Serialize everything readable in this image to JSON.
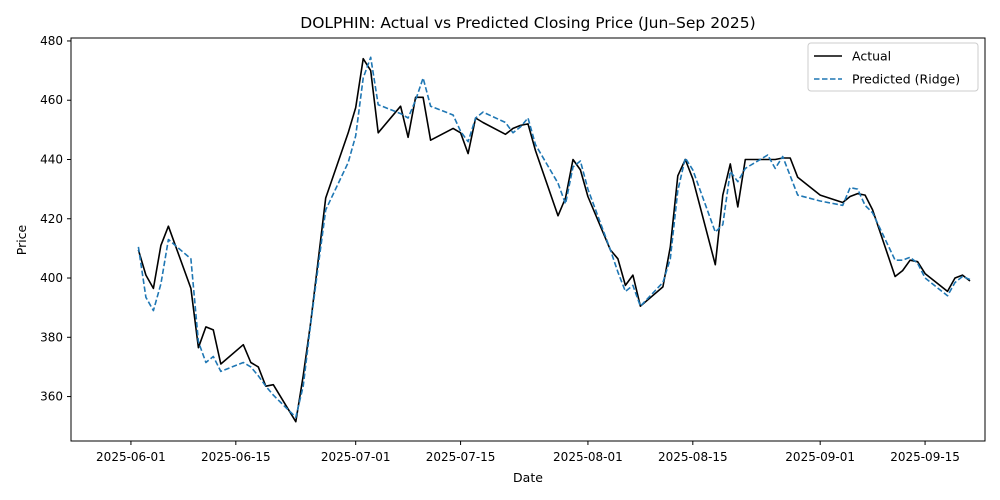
{
  "chart_data": {
    "type": "line",
    "title": "DOLPHIN: Actual vs Predicted Closing Price (Jun–Sep 2025)",
    "xlabel": "Date",
    "ylabel": "Price",
    "x_type": "date",
    "xlim": [
      "2025-05-24",
      "2025-09-23"
    ],
    "ylim": [
      345,
      481
    ],
    "x_ticks": [
      "2025-06-01",
      "2025-06-15",
      "2025-07-01",
      "2025-07-15",
      "2025-08-01",
      "2025-08-15",
      "2025-09-01",
      "2025-09-15"
    ],
    "y_ticks": [
      360,
      380,
      400,
      420,
      440,
      460,
      480
    ],
    "grid": false,
    "legend_position": "top-right",
    "series": [
      {
        "name": "Actual",
        "color": "#000000",
        "style": "solid",
        "points": [
          [
            "2025-06-02",
            409.5
          ],
          [
            "2025-06-03",
            401
          ],
          [
            "2025-06-04",
            396.5
          ],
          [
            "2025-06-05",
            411
          ],
          [
            "2025-06-06",
            417.5
          ],
          [
            "2025-06-09",
            396.5
          ],
          [
            "2025-06-10",
            376.5
          ],
          [
            "2025-06-11",
            383.5
          ],
          [
            "2025-06-12",
            382.5
          ],
          [
            "2025-06-13",
            371
          ],
          [
            "2025-06-16",
            377.5
          ],
          [
            "2025-06-17",
            371.5
          ],
          [
            "2025-06-18",
            370
          ],
          [
            "2025-06-19",
            363.5
          ],
          [
            "2025-06-20",
            364
          ],
          [
            "2025-06-23",
            351.5
          ],
          [
            "2025-06-24",
            367
          ],
          [
            "2025-06-25",
            385
          ],
          [
            "2025-06-26",
            406
          ],
          [
            "2025-06-27",
            427
          ],
          [
            "2025-06-30",
            449
          ],
          [
            "2025-07-01",
            457.5
          ],
          [
            "2025-07-02",
            474
          ],
          [
            "2025-07-03",
            470
          ],
          [
            "2025-07-04",
            449
          ],
          [
            "2025-07-07",
            458
          ],
          [
            "2025-07-08",
            447.5
          ],
          [
            "2025-07-09",
            461
          ],
          [
            "2025-07-10",
            461
          ],
          [
            "2025-07-11",
            446.5
          ],
          [
            "2025-07-14",
            450.5
          ],
          [
            "2025-07-15",
            449
          ],
          [
            "2025-07-16",
            442
          ],
          [
            "2025-07-17",
            454
          ],
          [
            "2025-07-18",
            452.5
          ],
          [
            "2025-07-21",
            448.5
          ],
          [
            "2025-07-22",
            450.5
          ],
          [
            "2025-07-23",
            451.5
          ],
          [
            "2025-07-24",
            452
          ],
          [
            "2025-07-25",
            443
          ],
          [
            "2025-07-28",
            421
          ],
          [
            "2025-07-29",
            427
          ],
          [
            "2025-07-30",
            440
          ],
          [
            "2025-07-31",
            436.5
          ],
          [
            "2025-08-01",
            427.5
          ],
          [
            "2025-08-04",
            409.5
          ],
          [
            "2025-08-05",
            406.5
          ],
          [
            "2025-08-06",
            397.5
          ],
          [
            "2025-08-07",
            401
          ],
          [
            "2025-08-08",
            390.5
          ],
          [
            "2025-08-11",
            397
          ],
          [
            "2025-08-12",
            410.5
          ],
          [
            "2025-08-13",
            434.5
          ],
          [
            "2025-08-14",
            440
          ],
          [
            "2025-08-15",
            433.5
          ],
          [
            "2025-08-18",
            404.5
          ],
          [
            "2025-08-19",
            428
          ],
          [
            "2025-08-20",
            438.5
          ],
          [
            "2025-08-21",
            424
          ],
          [
            "2025-08-22",
            440
          ],
          [
            "2025-08-25",
            440
          ],
          [
            "2025-08-26",
            440
          ],
          [
            "2025-08-27",
            440.5
          ],
          [
            "2025-08-28",
            440.5
          ],
          [
            "2025-08-29",
            434
          ],
          [
            "2025-09-01",
            428
          ],
          [
            "2025-09-04",
            425.5
          ],
          [
            "2025-09-05",
            427.5
          ],
          [
            "2025-09-06",
            428.5
          ],
          [
            "2025-09-07",
            428
          ],
          [
            "2025-09-08",
            423
          ],
          [
            "2025-09-11",
            400.5
          ],
          [
            "2025-09-12",
            402.5
          ],
          [
            "2025-09-13",
            406
          ],
          [
            "2025-09-14",
            405.5
          ],
          [
            "2025-09-15",
            401.5
          ],
          [
            "2025-09-18",
            395.5
          ],
          [
            "2025-09-19",
            400
          ],
          [
            "2025-09-20",
            401
          ],
          [
            "2025-09-21",
            399
          ]
        ]
      },
      {
        "name": "Predicted (Ridge)",
        "color": "#1f77b4",
        "style": "dashed",
        "points": [
          [
            "2025-06-02",
            410.5
          ],
          [
            "2025-06-03",
            393.5
          ],
          [
            "2025-06-04",
            389
          ],
          [
            "2025-06-05",
            398
          ],
          [
            "2025-06-06",
            413
          ],
          [
            "2025-06-09",
            406.5
          ],
          [
            "2025-06-10",
            378.5
          ],
          [
            "2025-06-11",
            371.5
          ],
          [
            "2025-06-12",
            373.5
          ],
          [
            "2025-06-13",
            368.5
          ],
          [
            "2025-06-16",
            371.5
          ],
          [
            "2025-06-17",
            370
          ],
          [
            "2025-06-18",
            367
          ],
          [
            "2025-06-19",
            363.5
          ],
          [
            "2025-06-20",
            360.5
          ],
          [
            "2025-06-23",
            353
          ],
          [
            "2025-06-24",
            363.5
          ],
          [
            "2025-06-25",
            384.5
          ],
          [
            "2025-06-26",
            404
          ],
          [
            "2025-06-27",
            423
          ],
          [
            "2025-06-30",
            439
          ],
          [
            "2025-07-01",
            448
          ],
          [
            "2025-07-02",
            467.5
          ],
          [
            "2025-07-03",
            474.5
          ],
          [
            "2025-07-04",
            458.5
          ],
          [
            "2025-07-07",
            455.5
          ],
          [
            "2025-07-08",
            454
          ],
          [
            "2025-07-09",
            460
          ],
          [
            "2025-07-10",
            467.5
          ],
          [
            "2025-07-11",
            458
          ],
          [
            "2025-07-14",
            455
          ],
          [
            "2025-07-15",
            449.5
          ],
          [
            "2025-07-16",
            446
          ],
          [
            "2025-07-17",
            454
          ],
          [
            "2025-07-18",
            456
          ],
          [
            "2025-07-21",
            452.5
          ],
          [
            "2025-07-22",
            449
          ],
          [
            "2025-07-23",
            451
          ],
          [
            "2025-07-24",
            454
          ],
          [
            "2025-07-25",
            445
          ],
          [
            "2025-07-28",
            432
          ],
          [
            "2025-07-29",
            425
          ],
          [
            "2025-07-30",
            437.5
          ],
          [
            "2025-07-31",
            439.5
          ],
          [
            "2025-08-01",
            430
          ],
          [
            "2025-08-04",
            409.5
          ],
          [
            "2025-08-05",
            402
          ],
          [
            "2025-08-06",
            395.5
          ],
          [
            "2025-08-07",
            397.5
          ],
          [
            "2025-08-08",
            390.5
          ],
          [
            "2025-08-11",
            398.5
          ],
          [
            "2025-08-12",
            406.5
          ],
          [
            "2025-08-13",
            429.5
          ],
          [
            "2025-08-14",
            440.5
          ],
          [
            "2025-08-15",
            436.5
          ],
          [
            "2025-08-18",
            415.5
          ],
          [
            "2025-08-19",
            418
          ],
          [
            "2025-08-20",
            436
          ],
          [
            "2025-08-21",
            432.5
          ],
          [
            "2025-08-22",
            437
          ],
          [
            "2025-08-25",
            441.5
          ],
          [
            "2025-08-26",
            437
          ],
          [
            "2025-08-27",
            441
          ],
          [
            "2025-08-28",
            434.5
          ],
          [
            "2025-08-29",
            428
          ],
          [
            "2025-09-01",
            426
          ],
          [
            "2025-09-04",
            424.5
          ],
          [
            "2025-09-05",
            430.5
          ],
          [
            "2025-09-06",
            430
          ],
          [
            "2025-09-07",
            424.5
          ],
          [
            "2025-09-08",
            422
          ],
          [
            "2025-09-11",
            406
          ],
          [
            "2025-09-12",
            406
          ],
          [
            "2025-09-13",
            407
          ],
          [
            "2025-09-14",
            405
          ],
          [
            "2025-09-15",
            400
          ],
          [
            "2025-09-18",
            394
          ],
          [
            "2025-09-19",
            398.5
          ],
          [
            "2025-09-20",
            400.5
          ],
          [
            "2025-09-21",
            399.5
          ]
        ]
      }
    ]
  }
}
